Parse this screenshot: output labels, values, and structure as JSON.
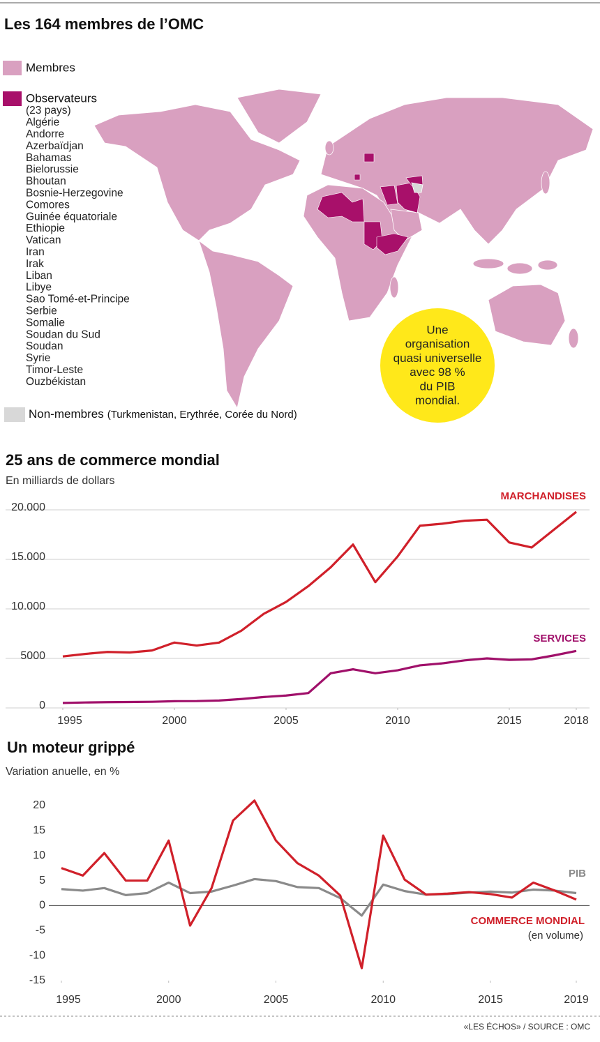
{
  "header": {
    "title": "Les 164 membres de l’OMC"
  },
  "map": {
    "legend": {
      "members": "Membres",
      "observers": "Observateurs",
      "observers_count": "(23 pays)",
      "observer_list": [
        "Algérie",
        "Andorre",
        "Azerbaïdjan",
        "Bahamas",
        "Bielorussie",
        "Bhoutan",
        "Bosnie-Herzegovine",
        "Comores",
        "Guinée équatoriale",
        "Ethiopie",
        "Vatican",
        "Iran",
        "Irak",
        "Liban",
        "Libye",
        "Sao Tomé-et-Principe",
        "Serbie",
        "Somalie",
        "Soudan du Sud",
        "Soudan",
        "Syrie",
        "Timor-Leste",
        "Ouzbékistan"
      ],
      "non_members": "Non-membres",
      "non_members_list": "(Turkmenistan, Erythrée, Corée du Nord)"
    },
    "callout": [
      "Une",
      "organisation",
      "quasi universelle",
      "avec 98 %",
      "du PIB",
      "mondial."
    ]
  },
  "chart_data": [
    {
      "type": "line",
      "title": "25 ans de commerce mondial",
      "subtitle": "En milliards de dollars",
      "x": [
        1995,
        1996,
        1997,
        1998,
        1999,
        2000,
        2001,
        2002,
        2003,
        2004,
        2005,
        2006,
        2007,
        2008,
        2009,
        2010,
        2011,
        2012,
        2013,
        2014,
        2015,
        2016,
        2017,
        2018
      ],
      "xlim": [
        1995,
        2018
      ],
      "xticks": [
        1995,
        2000,
        2005,
        2010,
        2015,
        2018
      ],
      "ylim": [
        0,
        20000
      ],
      "yticks": [
        0,
        5000,
        {
          "value": 10000,
          "label": "10.000"
        },
        {
          "value": 15000,
          "label": "15.000"
        },
        {
          "value": 20000,
          "label": "20.000"
        }
      ],
      "grid": true,
      "series": [
        {
          "name": "MARCHANDISES",
          "color": "#d0202a",
          "values": [
            5200,
            5450,
            5650,
            5600,
            5800,
            6600,
            6300,
            6600,
            7800,
            9500,
            10700,
            12300,
            14200,
            16500,
            12700,
            15300,
            18400,
            18600,
            18900,
            19000,
            16700,
            16200,
            18000,
            19800
          ]
        },
        {
          "name": "SERVICES",
          "color": "#a0106a",
          "values": [
            500,
            550,
            580,
            600,
            620,
            680,
            690,
            750,
            900,
            1100,
            1250,
            1500,
            3500,
            3900,
            3500,
            3800,
            4300,
            4500,
            4800,
            5000,
            4850,
            4900,
            5300,
            5750
          ]
        }
      ]
    },
    {
      "type": "line",
      "title": "Un moteur grippé",
      "subtitle": "Variation anuelle, en %",
      "x": [
        1995,
        1996,
        1997,
        1998,
        1999,
        2000,
        2001,
        2002,
        2003,
        2004,
        2005,
        2006,
        2007,
        2008,
        2009,
        2010,
        2011,
        2012,
        2013,
        2014,
        2015,
        2016,
        2017,
        2018,
        2019
      ],
      "xlim": [
        1995,
        2019
      ],
      "xticks": [
        1995,
        2000,
        2005,
        2010,
        2015,
        2019
      ],
      "ylim": [
        -15,
        20
      ],
      "yticks": [
        -15,
        -10,
        -5,
        0,
        5,
        10,
        15,
        20
      ],
      "grid": false,
      "series": [
        {
          "name": "PIB",
          "color": "#8a8a8a",
          "values": [
            3.3,
            3,
            3.5,
            2.1,
            2.5,
            4.6,
            2.5,
            2.8,
            4,
            5.3,
            4.9,
            3.7,
            3.5,
            1.5,
            -2,
            4.2,
            2.9,
            2.2,
            2.3,
            2.6,
            2.8,
            2.6,
            3.2,
            3,
            2.5
          ]
        },
        {
          "name": "COMMERCE MONDIAL",
          "color": "#d0202a",
          "values": [
            7.5,
            6,
            10.5,
            5,
            5,
            13,
            -4,
            3.5,
            17,
            21,
            13,
            8.5,
            6,
            2,
            -12.5,
            14,
            5.2,
            2.2,
            2.4,
            2.7,
            2.3,
            1.6,
            4.6,
            3,
            1.2
          ]
        }
      ],
      "annotations": [
        "(en volume)"
      ]
    }
  ],
  "footer": {
    "source": "«LES ÉCHOS» / SOURCE : OMC"
  }
}
